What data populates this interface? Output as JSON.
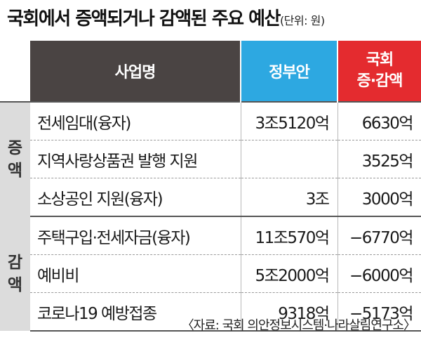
{
  "title": "국회에서 증액되거나 감액된 주요 예산",
  "unit": "(단위: 원)",
  "source": "〈자료: 국회 의안정보시스템·나라살림연구소〉",
  "chart_data": {
    "type": "table",
    "headers": {
      "name": "사업명",
      "gov": "정부안",
      "change_line1": "국회",
      "change_line2": "증·감액"
    },
    "groups": [
      {
        "label_chars": [
          "증",
          "액"
        ],
        "rows": [
          {
            "name": "전세임대(융자)",
            "gov": "3조5120억",
            "change": "6630억"
          },
          {
            "name": "지역사랑상품권 발행 지원",
            "gov": "",
            "change": "3525억"
          },
          {
            "name": "소상공인 지원(융자)",
            "gov": "3조",
            "change": "3000억"
          }
        ]
      },
      {
        "label_chars": [
          "감",
          "액"
        ],
        "rows": [
          {
            "name": "주택구입·전세자금(융자)",
            "gov": "11조570억",
            "change": "−6770억"
          },
          {
            "name": "예비비",
            "gov": "5조2000억",
            "change": "−6000억"
          },
          {
            "name": "코로나19 예방접종",
            "gov": "9318억",
            "change": "−5173억"
          }
        ]
      }
    ]
  },
  "colors": {
    "header_dark": "#4a4443",
    "header_blue": "#2da8e1",
    "header_red": "#e42b2f",
    "group_bg": "#dcdcdc"
  }
}
